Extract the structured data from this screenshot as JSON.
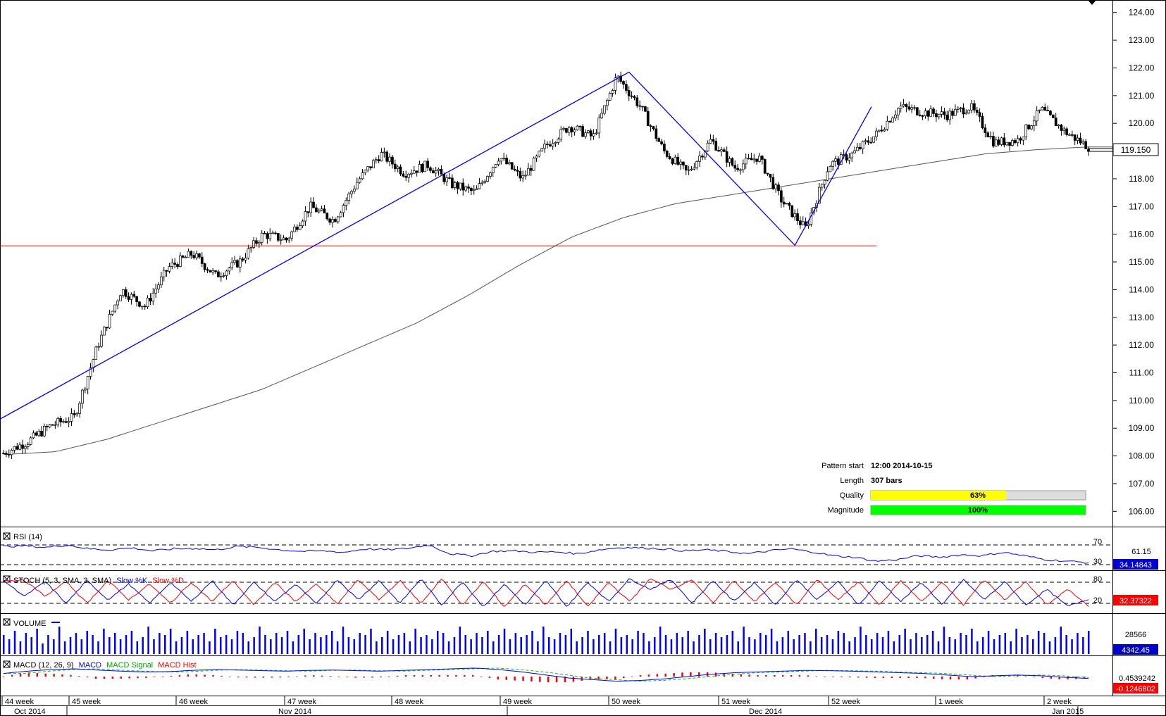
{
  "colors": {
    "candle_up": "#ffffff",
    "candle_down": "#000000",
    "pattern_line": "#0000ff",
    "support_line": "#ff0000",
    "ma_line": "#555555",
    "rsi_line": "#0000ff",
    "stoch_k": "#0000ff",
    "stoch_d": "#ff0000",
    "volume_bar": "#0000ff",
    "macd_line": "#0000ff",
    "macd_signal": "#00cc00",
    "macd_hist": "#ff0000",
    "price_box": "#ffffff",
    "indicator_box": "#0000cc",
    "macd_box": "#ff0000",
    "quality_fill": "#ffff00",
    "magnitude_fill": "#00ff00"
  },
  "main": {
    "price_ticks": [
      "124.00",
      "123.00",
      "122.00",
      "121.00",
      "120.00",
      "119.00",
      "118.00",
      "117.00",
      "116.00",
      "115.00",
      "114.00",
      "113.00",
      "112.00",
      "111.00",
      "110.00",
      "109.00",
      "108.00",
      "107.00",
      "106.00"
    ],
    "current_price_label": "119.150"
  },
  "pattern_info": {
    "start_label": "Pattern start",
    "start_value": "12:00 2014-10-15",
    "length_label": "Length",
    "length_value": "307 bars",
    "quality_label": "Quality",
    "quality_value": "63%",
    "quality_fraction": 0.63,
    "magnitude_label": "Magnitude",
    "magnitude_value": "100%",
    "magnitude_fraction": 1.0
  },
  "rsi": {
    "title": "RSI (14)",
    "level_high": "70",
    "level_low": "30",
    "tick": "61.15",
    "value": "34.14843"
  },
  "stoch": {
    "title": "STOCH (5, 3, SMA, 3, SMA)",
    "k_label": "Slow %K",
    "d_label": "Slow %D",
    "level_high": "80",
    "level_low": "20",
    "value": "32.37322"
  },
  "volume": {
    "title": "VOLUME",
    "tick": "28566",
    "value": "4342.45"
  },
  "macd": {
    "title": "MACD (12, 26, 9)",
    "macd_label": "MACD",
    "signal_label": "MACD Signal",
    "hist_label": "MACD Hist",
    "tick": "0.4539242",
    "value": "-0.1246802"
  },
  "time_axis": {
    "weeks": [
      "44 week",
      "45 week",
      "46 week",
      "47 week",
      "48 week",
      "49 week",
      "50 week",
      "51 week",
      "52 week",
      "1 week",
      "2 week"
    ],
    "months": [
      "Oct 2014",
      "Nov 2014",
      "Dec 2014",
      "Jan 2015"
    ]
  },
  "chart_data": {
    "type": "candlestick",
    "title": "",
    "ylim": [
      105.5,
      124.4
    ],
    "pattern_points": [
      {
        "x": "2014-10-15",
        "y": 109.4
      },
      {
        "x": "2014-12-03",
        "y": 121.85
      },
      {
        "x": "2014-12-16",
        "y": 115.6
      },
      {
        "x": "2014-12-22",
        "y": 120.6
      }
    ],
    "support_level": 115.58,
    "close_path": [
      108.1,
      108.5,
      109.1,
      109.4,
      112.0,
      114.0,
      113.4,
      114.8,
      115.3,
      114.5,
      115.0,
      116.0,
      115.8,
      117.0,
      116.5,
      117.9,
      118.9,
      118.2,
      118.5,
      117.8,
      117.5,
      118.8,
      118.0,
      119.2,
      119.9,
      119.5,
      121.7,
      120.6,
      119.0,
      118.2,
      119.4,
      118.4,
      118.8,
      117.2,
      116.2,
      118.5,
      118.9,
      119.6,
      120.6,
      120.4,
      120.3,
      120.6,
      119.3,
      119.4,
      120.5,
      119.7,
      119.15
    ],
    "ma_path": [
      108.05,
      108.15,
      108.6,
      109.2,
      109.8,
      110.4,
      111.2,
      112.0,
      112.8,
      113.8,
      114.9,
      115.9,
      116.6,
      117.1,
      117.4,
      117.7,
      118.0,
      118.3,
      118.6,
      118.9,
      119.05,
      119.15
    ],
    "rsi_path": [
      67,
      68,
      65,
      70,
      62,
      60,
      64,
      58,
      62,
      63,
      60,
      67,
      65,
      60,
      57,
      58,
      55,
      62,
      60,
      63,
      70,
      52,
      48,
      57,
      58,
      55,
      56,
      52,
      60,
      65,
      64,
      62,
      58,
      60,
      57,
      52,
      58,
      62,
      56,
      48,
      45,
      37,
      40,
      48,
      45,
      50,
      48,
      55,
      48,
      40,
      37,
      34
    ],
    "stoch_k_path": [
      85,
      40,
      82,
      20,
      85,
      30,
      75,
      20,
      80,
      25,
      85,
      15,
      80,
      25,
      75,
      18,
      88,
      30,
      85,
      20,
      90,
      15,
      82,
      10,
      75,
      15,
      85,
      10,
      80,
      25,
      90,
      60,
      88,
      20,
      85,
      25,
      80,
      15,
      88,
      30,
      82,
      15,
      85,
      25,
      80,
      15,
      88,
      30,
      82,
      15,
      60,
      12,
      32
    ],
    "volume_values": [
      18,
      14,
      22,
      12,
      20,
      16,
      24,
      10,
      18,
      14,
      26,
      12,
      16,
      20,
      14,
      22,
      18,
      12,
      24,
      16,
      20,
      14,
      18,
      22,
      12,
      16,
      26,
      14,
      20,
      18,
      24,
      12,
      16,
      22,
      14,
      18,
      20,
      12,
      24,
      16,
      18,
      14,
      22,
      20,
      12,
      16,
      26,
      18,
      14,
      20,
      16,
      22,
      12,
      18,
      24,
      14,
      20,
      16,
      18,
      22,
      12,
      26,
      16,
      14,
      20,
      18,
      24,
      12,
      16,
      22,
      14,
      18,
      20,
      12,
      24,
      16,
      18,
      14,
      22,
      20,
      12,
      16,
      26,
      18,
      14,
      20,
      16,
      22,
      12,
      18,
      24,
      14,
      20,
      16,
      18,
      22,
      12,
      26,
      16,
      14,
      20,
      18,
      24,
      12,
      16,
      22,
      14,
      18,
      20,
      12,
      24,
      16,
      18,
      14,
      22,
      20,
      12,
      16,
      26,
      18,
      14,
      20,
      16,
      22,
      12,
      18,
      24,
      14,
      20,
      16,
      18,
      22,
      12,
      26,
      16,
      14,
      20,
      18,
      24,
      12,
      16,
      22,
      14,
      18,
      20,
      12,
      24,
      16,
      18,
      14,
      22,
      20,
      12,
      16,
      26,
      18,
      14,
      20,
      16,
      22,
      12,
      18,
      24,
      14,
      20,
      16,
      18,
      22,
      12,
      26,
      16,
      14,
      20,
      18,
      24,
      12,
      16,
      22,
      14,
      18,
      20,
      12,
      24,
      16,
      18,
      14,
      22,
      20,
      12,
      16,
      26,
      18,
      14,
      20,
      16,
      22
    ],
    "macd_path": [
      0.2,
      0.35,
      0.45,
      0.5,
      0.42,
      0.35,
      0.3,
      0.32,
      0.4,
      0.45,
      0.42,
      0.38,
      0.35,
      0.4,
      0.42,
      0.38,
      0.35,
      0.4,
      0.45,
      0.5,
      0.55,
      0.45,
      0.3,
      0.1,
      -0.1,
      -0.2,
      -0.3,
      -0.25,
      -0.15,
      0.0,
      0.15,
      0.25,
      0.3,
      0.35,
      0.4,
      0.38,
      0.35,
      0.3,
      0.25,
      0.2,
      0.1,
      0.0,
      0.05,
      0.1,
      0.05,
      -0.05,
      -0.12
    ]
  }
}
